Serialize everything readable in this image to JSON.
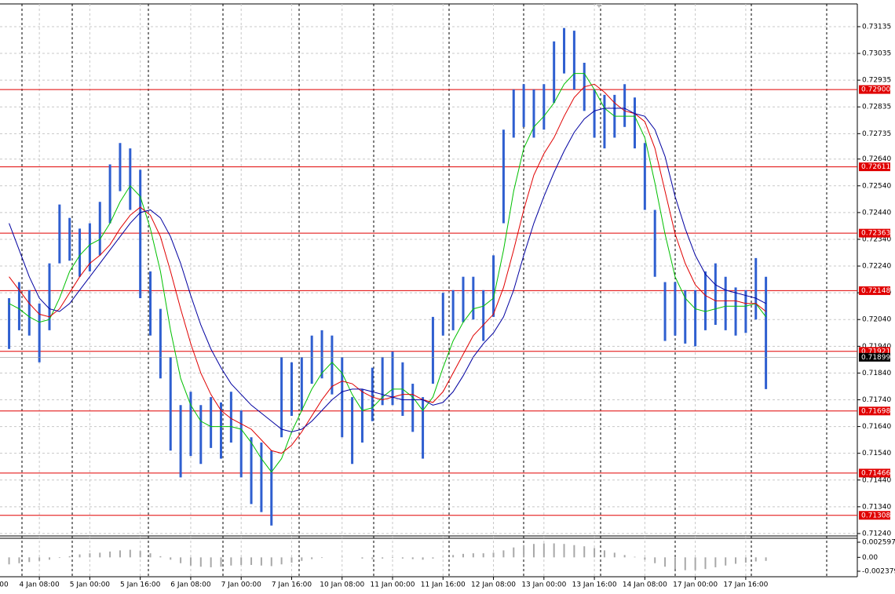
{
  "chart_data": {
    "type": "hilo",
    "color": "#2f5fd0",
    "x": [
      1,
      2,
      3,
      4,
      5,
      6,
      7,
      8,
      9,
      10,
      11,
      12,
      13,
      14,
      15,
      16,
      17,
      18,
      19,
      20,
      21,
      22,
      23,
      24,
      25,
      26,
      27,
      28,
      29,
      30,
      31,
      32,
      33,
      34,
      35,
      36,
      37,
      38,
      39,
      40,
      41,
      42,
      43,
      44,
      45,
      46,
      47,
      48,
      49,
      50,
      51,
      52,
      53,
      54,
      55,
      56,
      57,
      58,
      59,
      60,
      61,
      62,
      63,
      64,
      65,
      66,
      67,
      68,
      69,
      70,
      71,
      72,
      73,
      74,
      75,
      76
    ],
    "high": [
      0.7212,
      0.7218,
      0.7215,
      0.721,
      0.7225,
      0.7247,
      0.7242,
      0.7238,
      0.724,
      0.7248,
      0.7262,
      0.727,
      0.7268,
      0.726,
      0.7222,
      0.7208,
      0.719,
      0.7172,
      0.7177,
      0.7172,
      0.7175,
      0.7173,
      0.7177,
      0.717,
      0.716,
      0.7158,
      0.7155,
      0.719,
      0.7188,
      0.719,
      0.7198,
      0.72,
      0.7198,
      0.719,
      0.7175,
      0.7178,
      0.7186,
      0.719,
      0.7192,
      0.7188,
      0.718,
      0.7175,
      0.7205,
      0.7214,
      0.7215,
      0.722,
      0.722,
      0.7215,
      0.7228,
      0.7275,
      0.729,
      0.7292,
      0.729,
      0.7292,
      0.7308,
      0.7313,
      0.7312,
      0.73,
      0.729,
      0.7288,
      0.7288,
      0.7292,
      0.7287,
      0.727,
      0.7245,
      0.7218,
      0.7218,
      0.7215,
      0.7215,
      0.7222,
      0.7225,
      0.722,
      0.7216,
      0.7215,
      0.7227,
      0.722
    ],
    "low": [
      0.7193,
      0.72,
      0.7198,
      0.7188,
      0.72,
      0.7225,
      0.7226,
      0.722,
      0.7222,
      0.7228,
      0.724,
      0.7252,
      0.7245,
      0.7212,
      0.7198,
      0.7182,
      0.7155,
      0.7145,
      0.7153,
      0.715,
      0.7156,
      0.7152,
      0.7158,
      0.7145,
      0.7135,
      0.7132,
      0.7127,
      0.716,
      0.7168,
      0.717,
      0.718,
      0.7182,
      0.7176,
      0.716,
      0.715,
      0.7158,
      0.7166,
      0.7172,
      0.7172,
      0.7168,
      0.7162,
      0.7152,
      0.718,
      0.7198,
      0.72,
      0.7203,
      0.7204,
      0.7196,
      0.7205,
      0.724,
      0.7272,
      0.7276,
      0.7272,
      0.7275,
      0.7285,
      0.7296,
      0.729,
      0.7282,
      0.7272,
      0.7268,
      0.7272,
      0.7276,
      0.7268,
      0.7245,
      0.722,
      0.7196,
      0.7198,
      0.7195,
      0.7194,
      0.72,
      0.7202,
      0.72,
      0.7198,
      0.7199,
      0.7204,
      0.7178
    ],
    "moving_averages": [
      {
        "color": "#00c000",
        "values": [
          0.721,
          0.7208,
          0.7205,
          0.7203,
          0.7204,
          0.7212,
          0.7222,
          0.7228,
          0.7232,
          0.7234,
          0.724,
          0.7248,
          0.7254,
          0.725,
          0.7238,
          0.7222,
          0.72,
          0.7182,
          0.7172,
          0.7166,
          0.7164,
          0.7164,
          0.7164,
          0.7163,
          0.7158,
          0.7152,
          0.7147,
          0.7152,
          0.7162,
          0.717,
          0.7178,
          0.7184,
          0.7188,
          0.7184,
          0.7176,
          0.717,
          0.7171,
          0.7175,
          0.7178,
          0.7178,
          0.7175,
          0.717,
          0.7175,
          0.7186,
          0.7196,
          0.7203,
          0.7208,
          0.7209,
          0.7212,
          0.723,
          0.7252,
          0.7268,
          0.7276,
          0.728,
          0.7285,
          0.7292,
          0.7296,
          0.7296,
          0.729,
          0.7283,
          0.728,
          0.728,
          0.728,
          0.7272,
          0.7255,
          0.7236,
          0.722,
          0.7212,
          0.7208,
          0.7207,
          0.7208,
          0.7209,
          0.7209,
          0.7209,
          0.721,
          0.7205
        ]
      },
      {
        "color": "#e00000",
        "values": [
          0.722,
          0.7215,
          0.721,
          0.7206,
          0.7205,
          0.7208,
          0.7214,
          0.722,
          0.7225,
          0.7228,
          0.7232,
          0.7238,
          0.7243,
          0.7246,
          0.7243,
          0.7235,
          0.7222,
          0.7208,
          0.7195,
          0.7184,
          0.7176,
          0.717,
          0.7167,
          0.7165,
          0.7163,
          0.7159,
          0.7155,
          0.7154,
          0.7157,
          0.7162,
          0.7168,
          0.7174,
          0.7179,
          0.7181,
          0.718,
          0.7177,
          0.7175,
          0.7174,
          0.7175,
          0.7176,
          0.7176,
          0.7174,
          0.7173,
          0.7177,
          0.7184,
          0.7191,
          0.7198,
          0.7202,
          0.7206,
          0.7216,
          0.723,
          0.7245,
          0.7258,
          0.7266,
          0.7272,
          0.728,
          0.7287,
          0.7291,
          0.7292,
          0.7289,
          0.7285,
          0.7282,
          0.7281,
          0.7278,
          0.7268,
          0.7252,
          0.7236,
          0.7225,
          0.7217,
          0.7213,
          0.7211,
          0.7211,
          0.7211,
          0.721,
          0.721,
          0.7207
        ]
      },
      {
        "color": "#0000a0",
        "values": [
          0.724,
          0.723,
          0.722,
          0.7212,
          0.7208,
          0.7207,
          0.721,
          0.7215,
          0.722,
          0.7225,
          0.723,
          0.7235,
          0.724,
          0.7244,
          0.7245,
          0.7242,
          0.7235,
          0.7225,
          0.7213,
          0.7202,
          0.7193,
          0.7186,
          0.718,
          0.7176,
          0.7172,
          0.7169,
          0.7166,
          0.7163,
          0.7162,
          0.7163,
          0.7166,
          0.717,
          0.7174,
          0.7177,
          0.7178,
          0.7178,
          0.7177,
          0.7176,
          0.7175,
          0.7174,
          0.7174,
          0.7174,
          0.7172,
          0.7173,
          0.7177,
          0.7183,
          0.719,
          0.7195,
          0.7199,
          0.7205,
          0.7215,
          0.7228,
          0.724,
          0.725,
          0.7259,
          0.7267,
          0.7274,
          0.7279,
          0.7282,
          0.7283,
          0.7283,
          0.7283,
          0.7281,
          0.728,
          0.7275,
          0.7265,
          0.725,
          0.7238,
          0.7228,
          0.7221,
          0.7217,
          0.7215,
          0.7214,
          0.7213,
          0.7212,
          0.721
        ]
      }
    ],
    "levels": [
      {
        "value": 0.729,
        "label": "0.72900"
      },
      0.72611,
      0.72363,
      0.72148,
      0.71921,
      0.71698,
      0.71466,
      0.71308
    ],
    "level_color": "#e00000",
    "last_price": 0.71899,
    "xlim": [
      0.1,
      84.9
    ],
    "xticks": [
      {
        "value": -1,
        "label": "00"
      },
      {
        "value": 4,
        "label": "4 Jan 08:00"
      },
      {
        "value": 9,
        "label": "5 Jan 00:00"
      },
      {
        "value": 14,
        "label": "5 Jan 16:00"
      },
      {
        "value": 19,
        "label": "6 Jan 08:00"
      },
      {
        "value": 24,
        "label": "7 Jan 00:00"
      },
      {
        "value": 29,
        "label": "7 Jan 16:00"
      },
      {
        "value": 34,
        "label": "10 Jan 08:00"
      },
      {
        "value": 39,
        "label": "11 Jan 00:00"
      },
      {
        "value": 44,
        "label": "11 Jan 16:00"
      },
      {
        "value": 49,
        "label": "12 Jan 08:00"
      },
      {
        "value": 54,
        "label": "13 Jan 00:00"
      },
      {
        "value": 59,
        "label": "13 Jan 16:00"
      },
      {
        "value": 64,
        "label": "14 Jan 08:00"
      },
      {
        "value": 69,
        "label": "17 Jan 00:00"
      },
      {
        "value": 74,
        "label": "17 Jan 16:00"
      }
    ],
    "ylim": [
      0.71231,
      0.7322
    ],
    "yticks": [
      0.73135,
      0.73035,
      0.72935,
      0.72835,
      0.72735,
      {
        "value": 0.7264,
        "label": "0.72640"
      },
      {
        "value": 0.7254,
        "label": "0.72540"
      },
      {
        "value": 0.7244,
        "label": "0.72440"
      },
      {
        "value": 0.7234,
        "label": "0.72340"
      },
      {
        "value": 0.7224,
        "label": "0.72240"
      },
      {
        "value": 0.7214,
        "label": "0.72140"
      },
      {
        "value": 0.7204,
        "label": "0.72040"
      },
      {
        "value": 0.7194,
        "label": "0.71940"
      },
      {
        "value": 0.7184,
        "label": "0.71840"
      },
      {
        "value": 0.7174,
        "label": "0.71740"
      },
      {
        "value": 0.7164,
        "label": "0.71640"
      },
      {
        "value": 0.7154,
        "label": "0.71540"
      },
      {
        "value": 0.7144,
        "label": "0.71440"
      },
      {
        "value": 0.7134,
        "label": "0.71340"
      },
      {
        "value": 0.7124,
        "label": "0.71240"
      }
    ],
    "grid": true,
    "oscillator": {
      "color": "#a8a8a8",
      "values": [
        -0.0012,
        -0.001,
        -0.0008,
        -0.0006,
        -0.0004,
        -0.0001,
        0.0002,
        0.0005,
        0.0007,
        0.0008,
        0.001,
        0.0012,
        0.0013,
        0.0011,
        0.0007,
        0.0002,
        -0.0004,
        -0.001,
        -0.0014,
        -0.0016,
        -0.0017,
        -0.0016,
        -0.0014,
        -0.0013,
        -0.0013,
        -0.0014,
        -0.0015,
        -0.0012,
        -0.0009,
        -0.0006,
        -0.0003,
        -0.0001,
        0.0,
        0.0001,
        0.0,
        -0.0002,
        -0.0003,
        -0.0002,
        -0.0001,
        -0.0002,
        -0.0003,
        -0.0004,
        -0.0002,
        0.0001,
        0.0004,
        0.0006,
        0.0007,
        0.0007,
        0.0008,
        0.0012,
        0.0017,
        0.0021,
        0.0023,
        0.0024,
        0.0024,
        0.0023,
        0.0021,
        0.0019,
        0.0016,
        0.0012,
        0.0008,
        0.0004,
        0.0001,
        -0.0004,
        -0.001,
        -0.0016,
        -0.002,
        -0.0022,
        -0.0022,
        -0.002,
        -0.0017,
        -0.0014,
        -0.0011,
        -0.0009,
        -0.0007,
        -0.0006
      ],
      "ylim": [
        -0.00332,
        0.00327
      ],
      "yticks": [
        0.002597,
        {
          "value": 0,
          "label": "0.00"
        },
        -0.002379
      ]
    }
  }
}
